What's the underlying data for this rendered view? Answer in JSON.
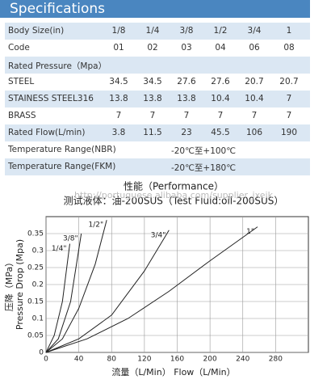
{
  "header": {
    "title": "Specifications"
  },
  "table": {
    "rows": [
      {
        "label": "Body Size(in)",
        "cells": [
          "1/8",
          "1/4",
          "3/8",
          "1/2",
          "3/4",
          "1"
        ]
      },
      {
        "label": "Code",
        "cells": [
          "01",
          "02",
          "03",
          "04",
          "06",
          "08"
        ]
      },
      {
        "label": "Rated Pressure（Mpa）",
        "cells": []
      },
      {
        "label": "STEEL",
        "cells": [
          "34.5",
          "34.5",
          "27.6",
          "27.6",
          "20.7",
          "20.7"
        ]
      },
      {
        "label": "STAINESS STEEL316",
        "cells": [
          "13.8",
          "13.8",
          "13.8",
          "10.4",
          "10.4",
          "7"
        ]
      },
      {
        "label": "BRASS",
        "cells": [
          "7",
          "7",
          "7",
          "7",
          "7",
          "7"
        ]
      },
      {
        "label": "Rated Flow(L/min)",
        "cells": [
          "3.8",
          "11.5",
          "23",
          "45.5",
          "106",
          "190"
        ]
      },
      {
        "label": "Temperature Range(NBR)",
        "span": "-20℃至+100℃"
      },
      {
        "label": "Temperature Range(FKM)",
        "span": "-20℃至+180℃"
      }
    ]
  },
  "chart_data": {
    "type": "line",
    "title": "性能（Performance）",
    "subtitle": "测试液体：油-200SUS（Test Fluid:oil-200SUS）",
    "watermark": "http://portuguese.alibaba.com/supplier_jxeik",
    "x_label": "流量（L/Min）   Flow（L/Min）",
    "y_label_cn": "压降（MPa）",
    "y_label_en": "Pressure Drop (Mpa)",
    "xlim": [
      0,
      320
    ],
    "ylim": [
      0,
      0.4
    ],
    "xticks": [
      0,
      40,
      80,
      120,
      160,
      200,
      240,
      280
    ],
    "yticks": [
      0,
      0.05,
      0.1,
      0.15,
      0.2,
      0.25,
      0.3,
      0.35
    ],
    "grid": true,
    "series": [
      {
        "name": "1/4\"",
        "color": "#222222",
        "x": [
          0,
          10,
          20,
          29
        ],
        "values": [
          0,
          0.05,
          0.15,
          0.32
        ]
      },
      {
        "name": "3/8\"",
        "color": "#222222",
        "x": [
          0,
          15,
          30,
          43
        ],
        "values": [
          0,
          0.04,
          0.15,
          0.35
        ]
      },
      {
        "name": "1/2\"",
        "color": "#222222",
        "x": [
          0,
          20,
          40,
          60,
          74
        ],
        "values": [
          0,
          0.04,
          0.13,
          0.26,
          0.39
        ]
      },
      {
        "name": "3/4\"",
        "color": "#222222",
        "x": [
          0,
          40,
          80,
          120,
          150
        ],
        "values": [
          0,
          0.04,
          0.11,
          0.24,
          0.36
        ]
      },
      {
        "name": "1\"",
        "color": "#222222",
        "x": [
          0,
          50,
          100,
          150,
          200,
          258
        ],
        "values": [
          0,
          0.04,
          0.1,
          0.18,
          0.27,
          0.37
        ]
      }
    ]
  }
}
